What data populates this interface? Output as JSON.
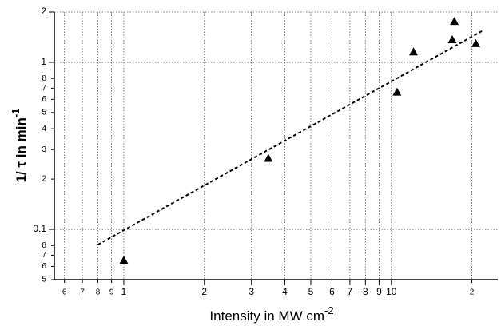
{
  "chart_data": {
    "type": "scatter",
    "x_label": "Intensity in MW cm",
    "x_label_sup": "-2",
    "y_label": "1/ τ in min",
    "y_label_sup": "-1",
    "xscale": "log",
    "yscale": "log",
    "xlim": [
      0.55,
      25
    ],
    "ylim": [
      0.05,
      2
    ],
    "xticks": [
      {
        "value": 0.6,
        "label": "6"
      },
      {
        "value": 0.7,
        "label": "7"
      },
      {
        "value": 0.8,
        "label": "8"
      },
      {
        "value": 0.9,
        "label": "9"
      },
      1,
      2,
      3,
      4,
      5,
      6,
      7,
      8,
      9,
      10,
      {
        "value": 20,
        "label": "2"
      }
    ],
    "yticks": [
      2,
      1,
      {
        "value": 0.8,
        "label": "8"
      },
      {
        "value": 0.7,
        "label": "7"
      },
      {
        "value": 0.6,
        "label": "6"
      },
      {
        "value": 0.5,
        "label": "5"
      },
      {
        "value": 0.4,
        "label": "4"
      },
      {
        "value": 0.3,
        "label": "3"
      },
      {
        "value": 0.2,
        "label": "2"
      },
      0.1,
      {
        "value": 0.08,
        "label": "8"
      },
      {
        "value": 0.07,
        "label": "7"
      },
      {
        "value": 0.06,
        "label": "6"
      },
      {
        "value": 0.05,
        "label": "5"
      }
    ],
    "grid": true,
    "series": [
      {
        "marker": "triangle",
        "color": "#000000",
        "x": [
          1.0,
          3.47,
          10.5,
          12.1,
          16.9,
          17.2,
          20.7
        ],
        "values": [
          0.065,
          0.265,
          0.66,
          1.15,
          1.36,
          1.75,
          1.29
        ]
      },
      {
        "line": "dashed",
        "color": "#000000",
        "x": [
          0.8,
          22
        ],
        "values": [
          0.081,
          1.55
        ]
      }
    ]
  }
}
